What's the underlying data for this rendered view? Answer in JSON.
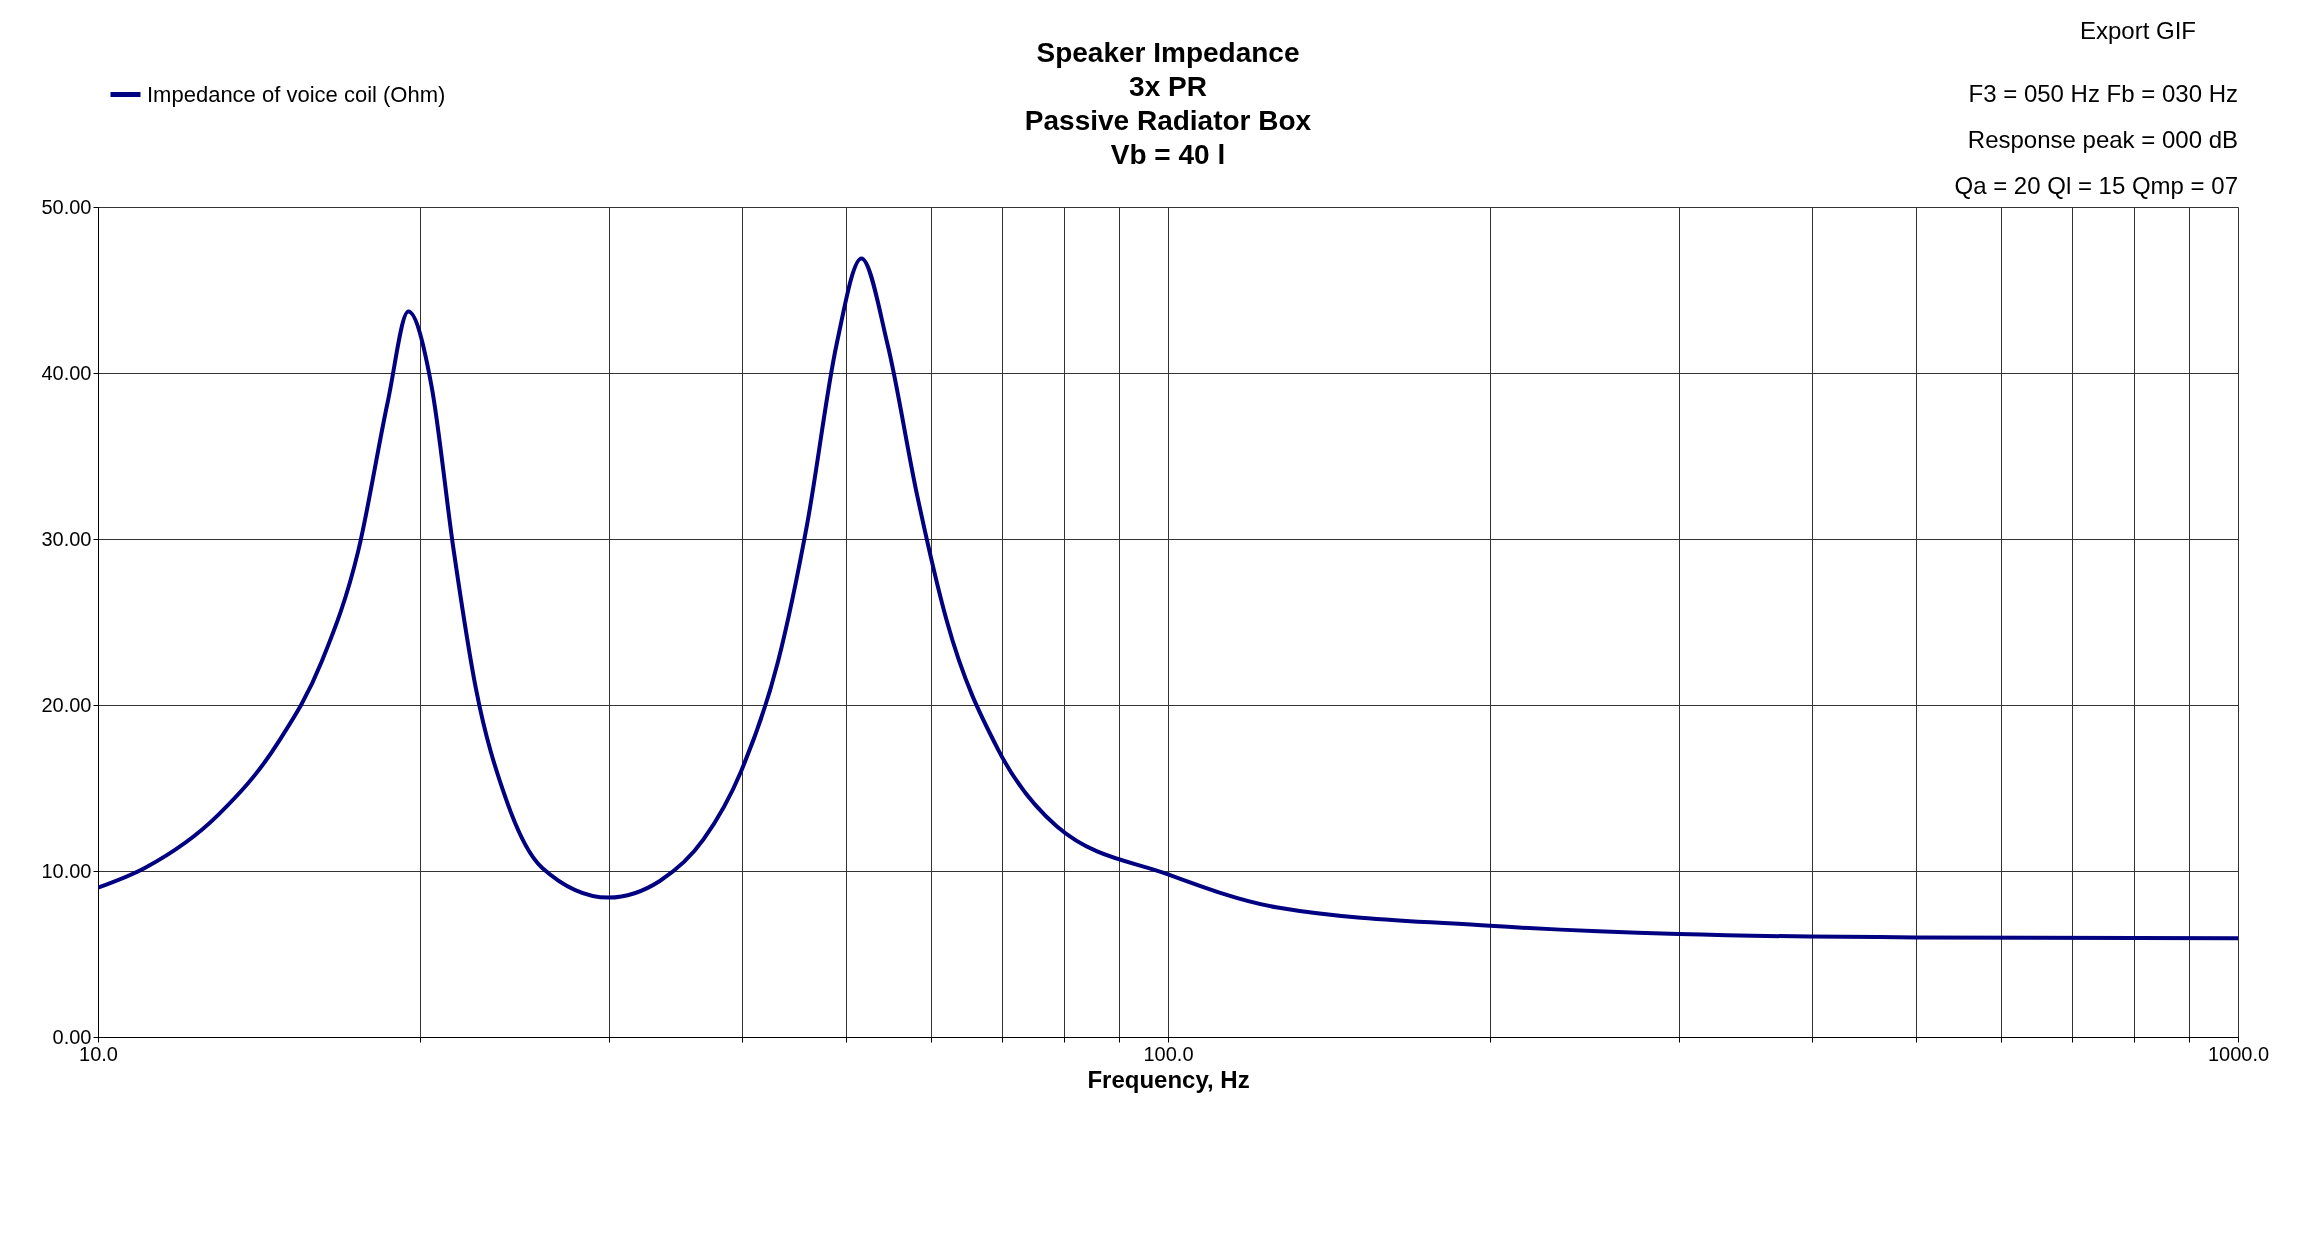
{
  "chart_data": {
    "type": "line",
    "title": "Speaker Impedance\n3x PR\nPassive Radiator Box\nVb = 40 l",
    "xlabel": "Frequency, Hz",
    "x": [
      10,
      11.07,
      12.96,
      14.72,
      16.18,
      17.51,
      18.66,
      19.5,
      20.5,
      21.5,
      22.55,
      24.04,
      26.0,
      30.0,
      33.5,
      36.8,
      39.9,
      43.2,
      46.0,
      49.0,
      51.7,
      54.7,
      58.3,
      62.1,
      69.4,
      78.7,
      100,
      126.6,
      200,
      300,
      500,
      1000
    ],
    "series": [
      {
        "name": "Impedance of voice coil (Ohm)",
        "color": "#000080",
        "values": [
          9.0,
          10.2,
          13.4,
          17.7,
          22.6,
          29.3,
          38.3,
          43.7,
          39.2,
          29.3,
          21.0,
          14.4,
          10.2,
          8.4,
          9.4,
          11.9,
          16.0,
          22.6,
          30.9,
          41.7,
          46.9,
          41.7,
          32.6,
          25.1,
          17.3,
          12.7,
          9.8,
          7.8,
          6.7,
          6.2,
          6.0,
          5.95
        ]
      }
    ],
    "log": "x",
    "xlim": [
      10,
      1000
    ],
    "ylim": [
      0,
      50
    ],
    "xticks": [
      {
        "value": 10,
        "label": "10.0"
      },
      {
        "value": 20,
        "label": null
      },
      {
        "value": 30,
        "label": null
      },
      {
        "value": 40,
        "label": null
      },
      {
        "value": 50,
        "label": null
      },
      {
        "value": 60,
        "label": null
      },
      {
        "value": 70,
        "label": null
      },
      {
        "value": 80,
        "label": null
      },
      {
        "value": 90,
        "label": null
      },
      {
        "value": 100,
        "label": "100.0"
      },
      {
        "value": 200,
        "label": null
      },
      {
        "value": 300,
        "label": null
      },
      {
        "value": 400,
        "label": null
      },
      {
        "value": 500,
        "label": null
      },
      {
        "value": 600,
        "label": null
      },
      {
        "value": 700,
        "label": null
      },
      {
        "value": 800,
        "label": null
      },
      {
        "value": 900,
        "label": null
      },
      {
        "value": 1000,
        "label": "1000.0"
      }
    ],
    "yticks": [
      {
        "value": 0,
        "label": "0.00"
      },
      {
        "value": 10,
        "label": "10.00"
      },
      {
        "value": 20,
        "label": "20.00"
      },
      {
        "value": 30,
        "label": "30.00"
      },
      {
        "value": 40,
        "label": "40.00"
      },
      {
        "value": 50,
        "label": "50.00"
      }
    ],
    "grid": true,
    "legend": "top left",
    "marker": "none",
    "line_style": "solid",
    "annotations": [
      "Export GIF",
      "F3 = 050 Hz  Fb = 030 Hz",
      "Response peak = 000 dB",
      "Qa = 20  Ql = 15  Qmp = 07"
    ]
  }
}
